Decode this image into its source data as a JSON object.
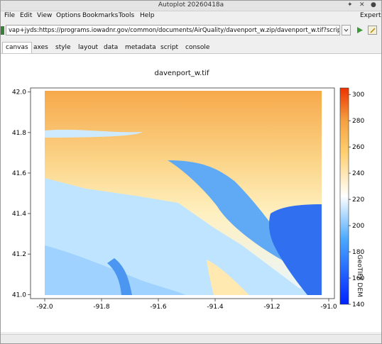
{
  "window": {
    "title": "Autoplot 20260418a"
  },
  "menu": [
    "File",
    "Edit",
    "View",
    "Options",
    "Bookmarks",
    "Tools",
    "Help"
  ],
  "expert_label": "Expert",
  "url": {
    "value": "vap+jyds:https://programs.iowadnr.gov/common/documents/AirQuality/davenport_w.zip/davenport_w.tif?script=https://githu"
  },
  "tabs": [
    "canvas",
    "axes",
    "style",
    "layout",
    "data",
    "metadata",
    "script",
    "console"
  ],
  "icons": {
    "go": "play-icon",
    "editor": "edit-icon",
    "pin": "pin-icon",
    "close": "close-icon",
    "menu": "circle-icon"
  },
  "plot": {
    "title": "davenport_w.tif",
    "colorbar_label": "GeoTIFF DEM"
  },
  "chart_data": {
    "type": "heatmap",
    "title": "davenport_w.tif",
    "xlabel": "",
    "ylabel": "",
    "xlim": [
      -92.05,
      -90.98
    ],
    "ylim": [
      40.98,
      42.02
    ],
    "xticks": [
      "-92.0",
      "-91.8",
      "-91.6",
      "-91.4",
      "-91.2",
      "-91.0"
    ],
    "yticks": [
      "41.0",
      "41.2",
      "41.4",
      "41.6",
      "41.8",
      "42.0"
    ],
    "colorbar": {
      "label": "GeoTIFF DEM",
      "range": [
        140,
        305
      ],
      "ticks": [
        "140",
        "160",
        "180",
        "200",
        "220",
        "240",
        "260",
        "280",
        "300"
      ]
    },
    "colors": {
      "low": "#0033ff",
      "mid": "#ffffff",
      "high": "#ee3300"
    }
  }
}
